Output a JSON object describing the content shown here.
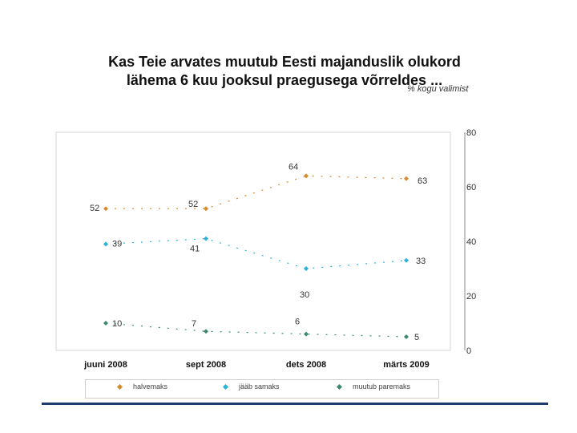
{
  "title": "Kas Teie arvates muutub Eesti majanduslik olukord lähema 6 kuu jooksul praegusega võrreldes ...",
  "unit_label": "% kogu valimist",
  "chart_data": {
    "type": "line",
    "categories": [
      "juuni 2008",
      "sept 2008",
      "dets 2008",
      "märts 2009"
    ],
    "series": [
      {
        "name": "halvemaks",
        "values": [
          52,
          52,
          64,
          63
        ],
        "color": "#d68a2a",
        "labels": [
          "52",
          "52",
          "64",
          "63"
        ]
      },
      {
        "name": "jääb samaks",
        "values": [
          39,
          41,
          30,
          33
        ],
        "color": "#2bb3d9",
        "labels": [
          "39",
          "41",
          "30",
          "33"
        ]
      },
      {
        "name": "muutub paremaks",
        "values": [
          10,
          7,
          6,
          5
        ],
        "color": "#3f8a6e",
        "labels": [
          "10",
          "7",
          "6",
          "5"
        ]
      }
    ],
    "yticks": [
      0,
      20,
      40,
      60,
      80
    ],
    "ylim": [
      0,
      80
    ],
    "legend_position": "bottom",
    "grid": false
  }
}
